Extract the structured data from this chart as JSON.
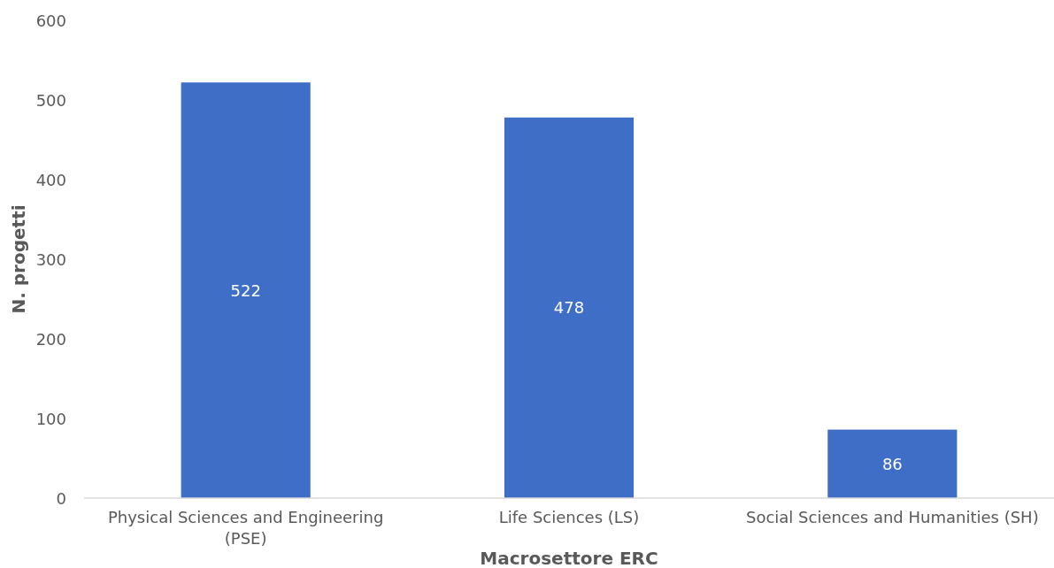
{
  "chart_data": {
    "type": "bar",
    "xlabel": "Macrosettore ERC",
    "ylabel": "N. progetti",
    "categories": [
      "Physical Sciences and Engineering (PSE)",
      "Life Sciences (LS)",
      "Social Sciences and Humanities (SH)"
    ],
    "values": [
      522,
      478,
      86
    ],
    "color": "#3f6ec7",
    "ylim": [
      0,
      600
    ],
    "yticks": [
      0,
      100,
      200,
      300,
      400,
      500,
      600
    ],
    "grid": false,
    "data_labels": true
  }
}
